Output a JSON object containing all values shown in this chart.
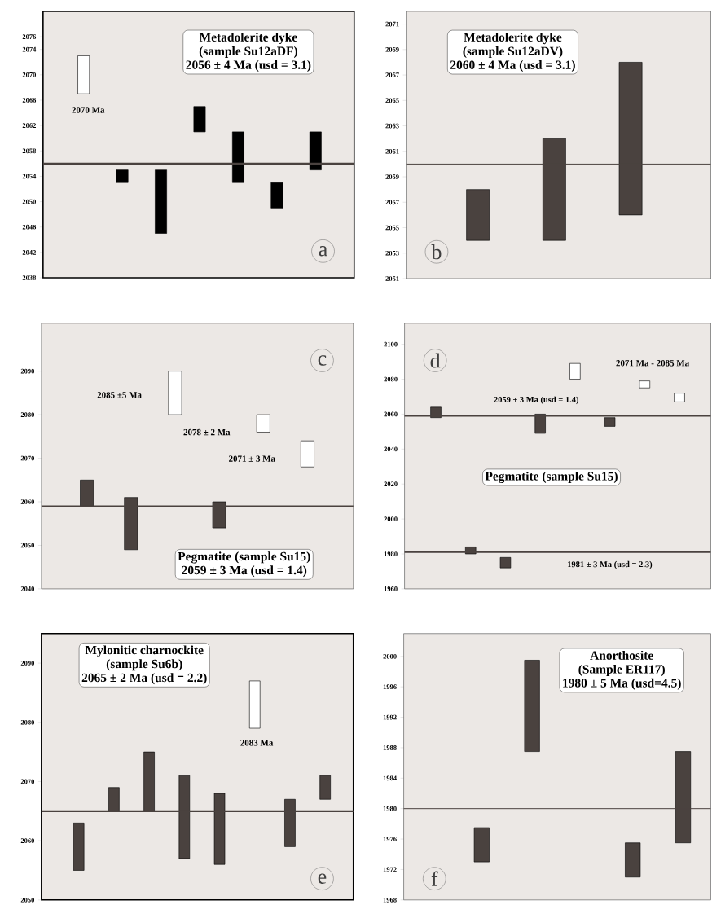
{
  "chart_data": [
    {
      "type": "bar",
      "title": "Metadolerite dyke",
      "subtitle": "(sample Su12aDF)",
      "annotations": [
        "2056 ± 4 Ma (usd = 3.1)",
        "2070 Ma",
        "a"
      ],
      "categories": [
        null,
        null,
        null,
        null,
        null,
        null,
        null
      ],
      "series": [
        {
          "color": "#ffffff",
          "base": [
            2067,
            null,
            null,
            null,
            null,
            null,
            null
          ],
          "values": [
            6,
            null,
            null,
            null,
            null,
            null,
            null
          ]
        },
        {
          "color": "#000000",
          "base": [
            null,
            2053,
            2045,
            2061,
            2053,
            2049,
            2055
          ],
          "values": [
            null,
            2,
            10,
            4,
            8,
            4,
            6
          ]
        }
      ],
      "ylim": [
        2038,
        2080
      ],
      "yticks": [
        2038,
        2042,
        2046,
        2050,
        2054,
        2058,
        2062,
        2066,
        2070,
        2074,
        2076
      ],
      "ref_lines": [
        {
          "axis": "y",
          "value": 2056,
          "color": "#4a423f"
        }
      ]
    },
    {
      "type": "bar",
      "title": "Metadolerite dyke",
      "subtitle": "(sample Su12aDV)",
      "annotations": [
        "2060 ± 4 Ma (usd = 3.1)",
        "b"
      ],
      "categories": [
        null,
        null,
        null
      ],
      "series": [
        {
          "color": "#4a423f",
          "base": [
            2054,
            2054,
            2056
          ],
          "values": [
            4,
            8,
            12
          ]
        }
      ],
      "ylim": [
        2051,
        2072
      ],
      "yticks": [
        2051,
        2053,
        2055,
        2057,
        2059,
        2061,
        2063,
        2065,
        2067,
        2069,
        2071
      ],
      "ref_lines": [
        {
          "axis": "y",
          "value": 2060,
          "color": "#4a423f"
        }
      ]
    },
    {
      "type": "bar",
      "title": "Pegmatite (sample Su15)",
      "annotations": [
        "2059 ± 3 Ma (usd = 1.4)",
        "2085 ±5 Ma",
        "2078 ± 2 Ma",
        "2071 ± 3 Ma",
        "c"
      ],
      "categories": [
        null,
        null,
        null,
        null,
        null,
        null
      ],
      "series": [
        {
          "color": "#4a423f",
          "base": [
            2059,
            2049,
            null,
            2054,
            null,
            null
          ],
          "values": [
            6,
            12,
            null,
            6,
            null,
            null
          ]
        },
        {
          "color": "#ffffff",
          "base": [
            null,
            null,
            2080,
            null,
            2076,
            2068
          ],
          "values": [
            null,
            null,
            10,
            null,
            4,
            6
          ]
        }
      ],
      "ylim": [
        2040,
        2101
      ],
      "yticks": [
        2040,
        2050,
        2060,
        2070,
        2080,
        2090
      ],
      "ref_lines": [
        {
          "axis": "y",
          "value": 2059,
          "color": "#4a423f"
        }
      ]
    },
    {
      "type": "bar",
      "title": "Pegmatite (sample Su15)",
      "annotations": [
        "2071 Ma - 2085 Ma",
        "d"
      ],
      "categories": [
        null,
        null,
        null,
        null,
        null,
        null,
        null,
        null
      ],
      "series": [
        {
          "color": "#4a423f",
          "base": [
            2058,
            1980,
            1972,
            2049,
            null,
            2053,
            null,
            null
          ],
          "values": [
            6,
            4,
            6,
            11,
            null,
            5,
            null,
            null
          ]
        },
        {
          "color": "#ffffff",
          "base": [
            null,
            null,
            null,
            null,
            2080,
            null,
            2075,
            2067
          ],
          "values": [
            null,
            null,
            null,
            null,
            9,
            null,
            4,
            5
          ]
        }
      ],
      "ylim": [
        1960,
        2112
      ],
      "yticks": [
        1960,
        1980,
        2000,
        2020,
        2040,
        2060,
        2080,
        2100
      ],
      "ref_lines": [
        {
          "axis": "y",
          "value": 2059,
          "label": "2059 ± 3 Ma (usd = 1.4)",
          "color": "#4a423f"
        },
        {
          "axis": "y",
          "value": 1981,
          "label": "1981 ± 3 Ma (usd = 2.3)",
          "color": "#4a423f"
        }
      ]
    },
    {
      "type": "bar",
      "title": "Mylonitic charnockite",
      "subtitle": "(sample Su6b)",
      "annotations": [
        "2065 ± 2 Ma (usd = 2.2)",
        "2083 Ma",
        "e"
      ],
      "categories": [
        null,
        null,
        null,
        null,
        null,
        null,
        null,
        null
      ],
      "series": [
        {
          "color": "#4a423f",
          "base": [
            2055,
            2065,
            2065,
            2057,
            2056,
            null,
            2059,
            2067
          ],
          "values": [
            8,
            4,
            10,
            14,
            12,
            null,
            8,
            4
          ]
        },
        {
          "color": "#ffffff",
          "base": [
            null,
            null,
            null,
            null,
            null,
            2079,
            null,
            null
          ],
          "values": [
            null,
            null,
            null,
            null,
            null,
            8,
            null,
            null
          ]
        }
      ],
      "ylim": [
        2050,
        2095
      ],
      "yticks": [
        2050,
        2060,
        2070,
        2080,
        2090
      ],
      "ref_lines": [
        {
          "axis": "y",
          "value": 2065,
          "color": "#4a423f"
        }
      ]
    },
    {
      "type": "bar",
      "title": "Anorthosite",
      "subtitle": "(Sample ER117)",
      "annotations": [
        "1980 ± 5 Ma (usd=4.5)",
        "f"
      ],
      "categories": [
        null,
        null,
        null,
        null,
        null,
        null
      ],
      "series": [
        {
          "color": "#4a423f",
          "base": [
            null,
            1973,
            1987.5,
            null,
            1971,
            1975.5
          ],
          "values": [
            null,
            4.5,
            12,
            null,
            4.5,
            12
          ]
        }
      ],
      "ylim": [
        1968,
        2003
      ],
      "yticks": [
        1968,
        1972,
        1976,
        1980,
        1984,
        1988,
        1992,
        1996,
        2000
      ],
      "ref_lines": [
        {
          "axis": "y",
          "value": 1980,
          "color": "#4a423f"
        }
      ]
    }
  ]
}
